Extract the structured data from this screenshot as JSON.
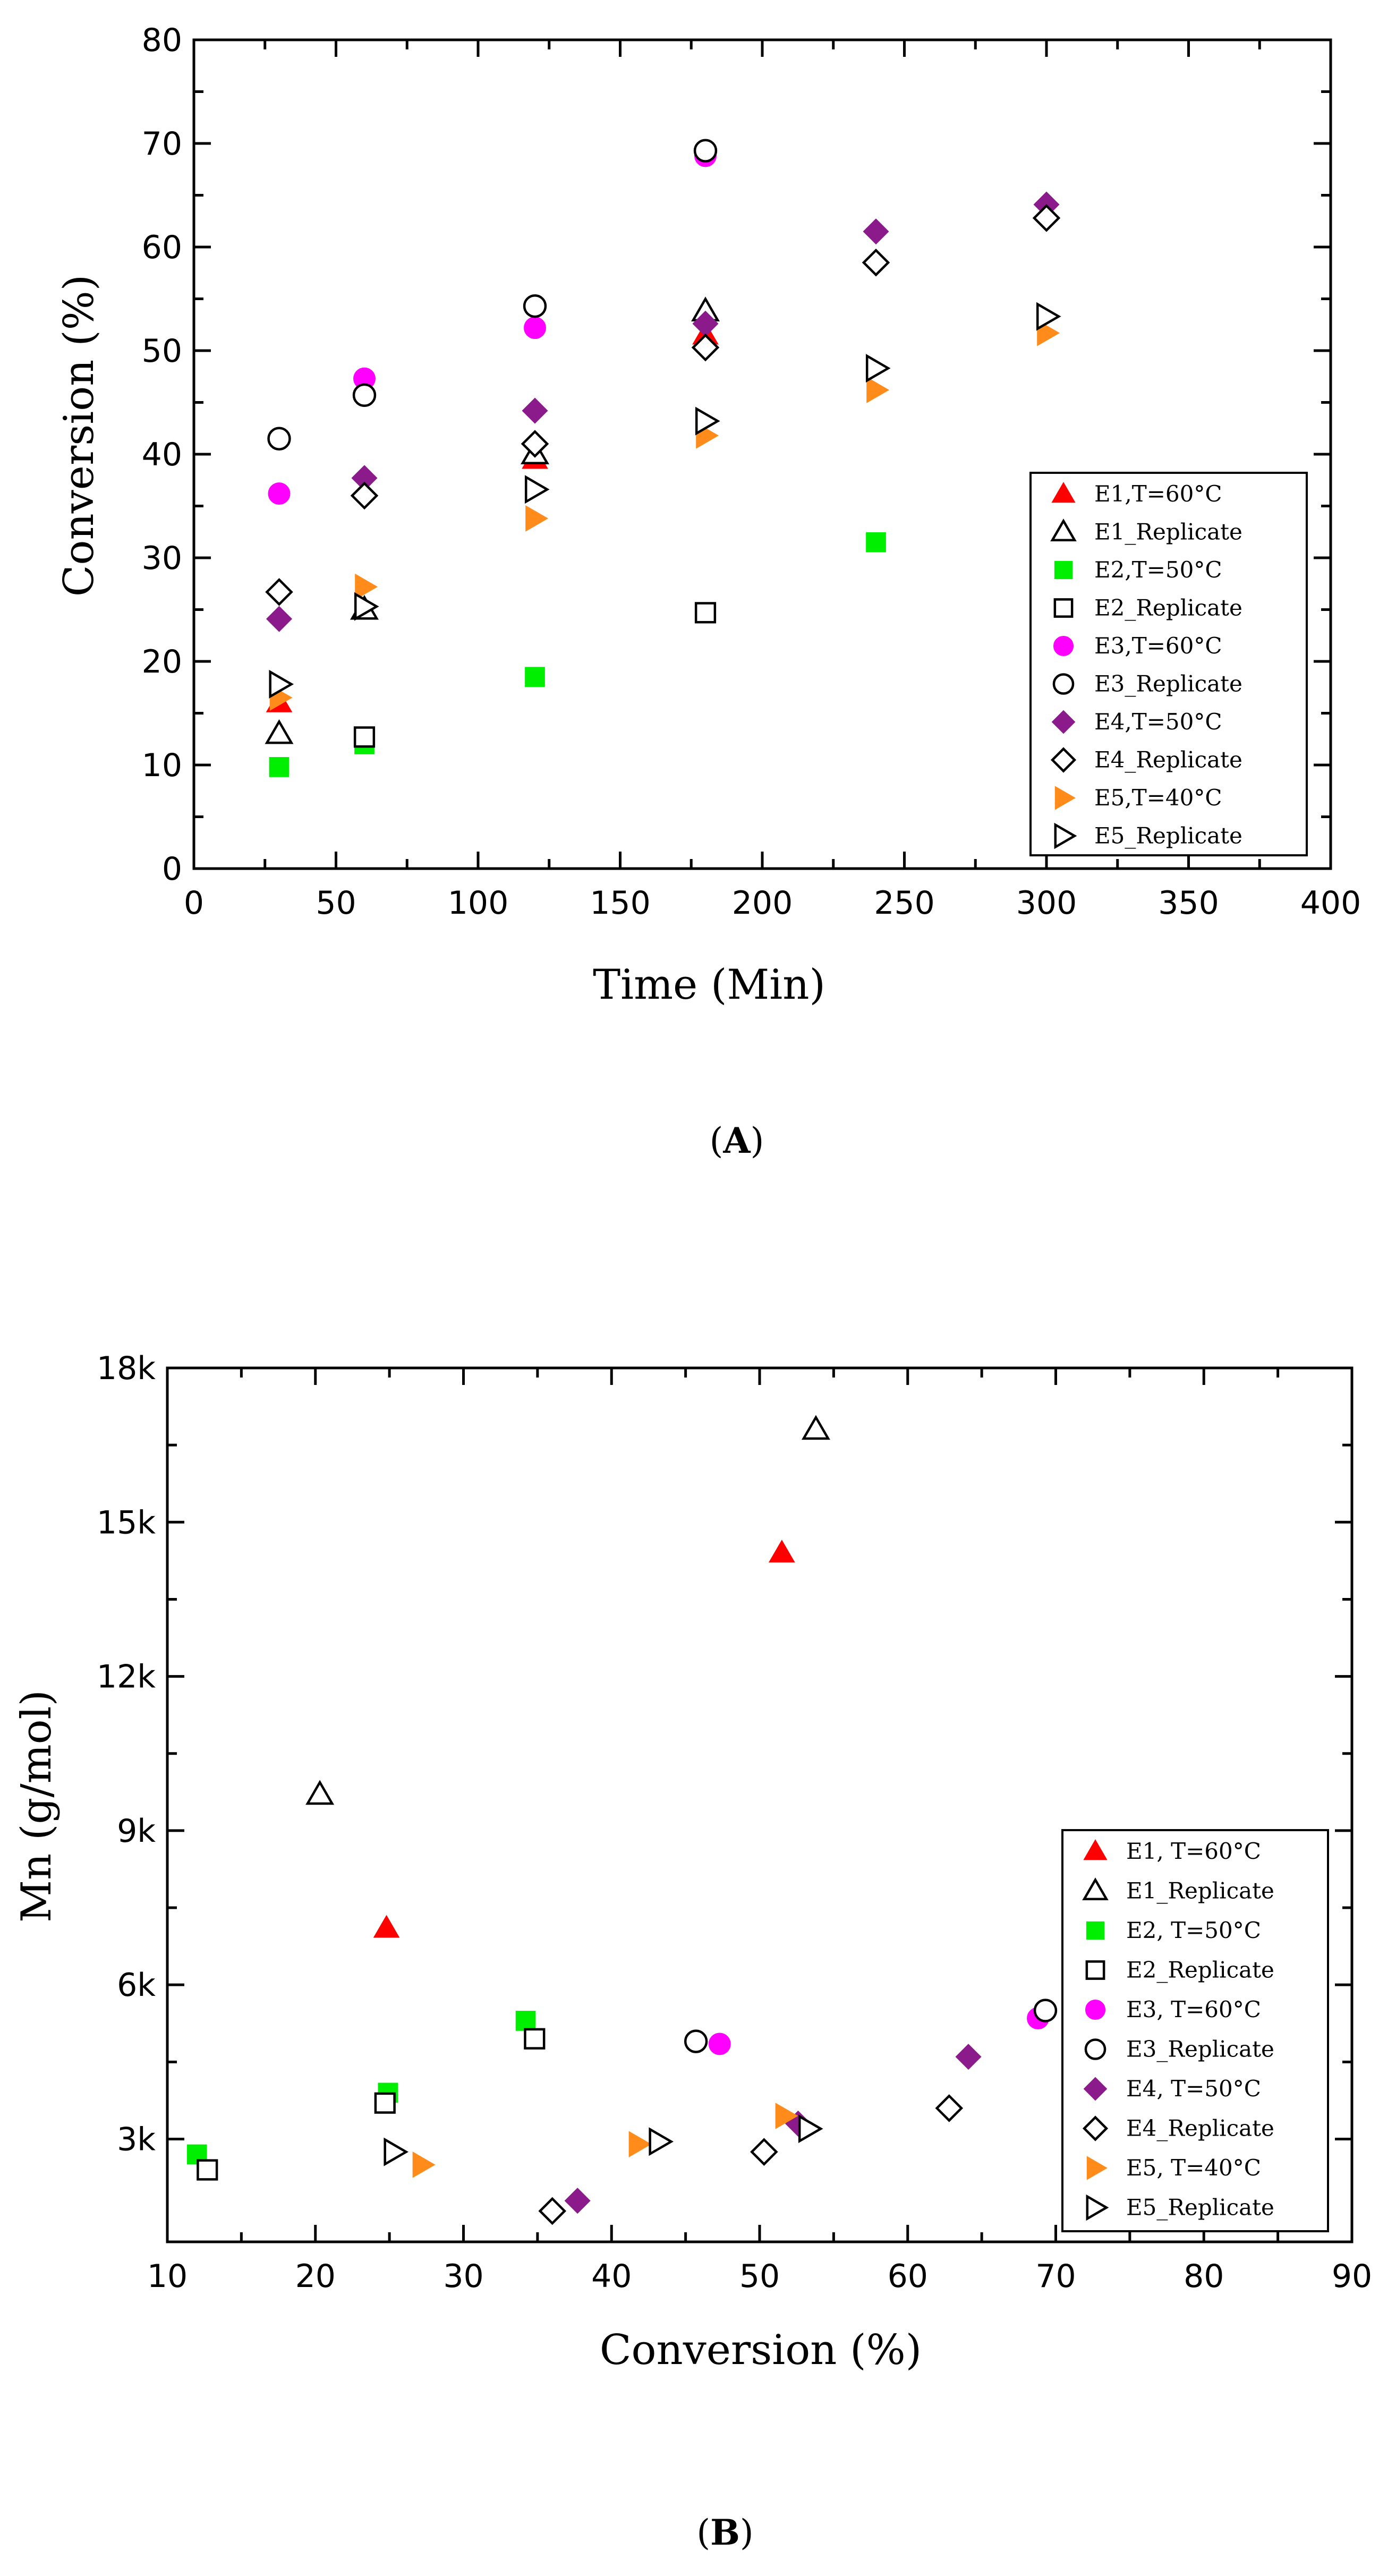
{
  "chart_data": [
    {
      "type": "scatter",
      "panel": "A",
      "xlabel": "Time (Min)",
      "ylabel": "Conversion (%)",
      "xlim": [
        0,
        400
      ],
      "ylim": [
        0,
        80
      ],
      "xticks": [
        0,
        50,
        100,
        150,
        200,
        250,
        300,
        350,
        400
      ],
      "yticks": [
        0,
        10,
        20,
        30,
        40,
        50,
        60,
        70,
        80
      ],
      "legend_position": "bottom-right",
      "series": [
        {
          "name": "E1,T=60°C",
          "marker": "triangle-up",
          "filled": true,
          "color": "#ff0000",
          "x": [
            30,
            60,
            120,
            180
          ],
          "y": [
            16,
            25,
            39.5,
            51.5
          ]
        },
        {
          "name": "E1_Replicate",
          "marker": "triangle-up",
          "filled": false,
          "color": "#000000",
          "x": [
            30,
            60,
            120,
            180
          ],
          "y": [
            13,
            25,
            40,
            53.8
          ]
        },
        {
          "name": "E2,T=50°C",
          "marker": "square",
          "filled": true,
          "color": "#00ee00",
          "x": [
            30,
            60,
            120,
            180,
            240
          ],
          "y": [
            9.8,
            12,
            18.5,
            24.7,
            31.5
          ]
        },
        {
          "name": "E2_Replicate",
          "marker": "square",
          "filled": false,
          "color": "#000000",
          "x": [
            60,
            180
          ],
          "y": [
            12.7,
            24.7
          ]
        },
        {
          "name": "E3,T=60°C",
          "marker": "circle",
          "filled": true,
          "color": "#ff00ff",
          "x": [
            30,
            60,
            120,
            180
          ],
          "y": [
            36.2,
            47.3,
            52.2,
            68.8
          ]
        },
        {
          "name": "E3_Replicate",
          "marker": "circle",
          "filled": false,
          "color": "#000000",
          "x": [
            30,
            60,
            120,
            180
          ],
          "y": [
            41.5,
            45.7,
            54.3,
            69.3
          ]
        },
        {
          "name": "E4,T=50°C",
          "marker": "diamond",
          "filled": true,
          "color": "#8b1a8b",
          "x": [
            30,
            60,
            120,
            180,
            240,
            300
          ],
          "y": [
            24.1,
            37.7,
            44.2,
            52.6,
            61.5,
            64.1
          ]
        },
        {
          "name": "E4_Replicate",
          "marker": "diamond",
          "filled": false,
          "color": "#000000",
          "x": [
            30,
            60,
            120,
            180,
            240,
            300
          ],
          "y": [
            26.7,
            36,
            41,
            50.3,
            58.5,
            62.8
          ]
        },
        {
          "name": "E5,T=40°C",
          "marker": "triangle-right",
          "filled": true,
          "color": "#ff8c1a",
          "x": [
            30,
            60,
            120,
            180,
            240,
            300
          ],
          "y": [
            16.5,
            27.2,
            33.8,
            41.8,
            46.2,
            51.7
          ]
        },
        {
          "name": "E5_Replicate",
          "marker": "triangle-right",
          "filled": false,
          "color": "#000000",
          "x": [
            30,
            60,
            120,
            180,
            240,
            300
          ],
          "y": [
            17.8,
            25.3,
            36.6,
            43.2,
            48.3,
            53.3
          ]
        }
      ]
    },
    {
      "type": "scatter",
      "panel": "B",
      "xlabel": "Conversion (%)",
      "ylabel": "Mn (g/mol)",
      "xlim": [
        10,
        90
      ],
      "ylim": [
        1000,
        18000
      ],
      "xticks": [
        10,
        20,
        30,
        40,
        50,
        60,
        70,
        80,
        90
      ],
      "yticks": [
        3000,
        6000,
        9000,
        12000,
        15000,
        18000
      ],
      "ytick_labels": [
        "3k",
        "6k",
        "9k",
        "12k",
        "15k",
        "18k"
      ],
      "legend_position": "bottom-right",
      "series": [
        {
          "name": "E1, T=60°C",
          "marker": "triangle-up",
          "filled": true,
          "color": "#ff0000",
          "x": [
            24.8,
            51.5
          ],
          "y": [
            7100,
            14400
          ]
        },
        {
          "name": "E1_Replicate",
          "marker": "triangle-up",
          "filled": false,
          "color": "#000000",
          "x": [
            20.3,
            53.8
          ],
          "y": [
            9700,
            16800
          ]
        },
        {
          "name": "E2, T=50°C",
          "marker": "square",
          "filled": true,
          "color": "#00ee00",
          "x": [
            12,
            24.9,
            34.2
          ],
          "y": [
            2700,
            3900,
            5300
          ]
        },
        {
          "name": "E2_Replicate",
          "marker": "square",
          "filled": false,
          "color": "#000000",
          "x": [
            12.7,
            24.7,
            34.8
          ],
          "y": [
            2400,
            3700,
            4950
          ]
        },
        {
          "name": "E3, T=60°C",
          "marker": "circle",
          "filled": true,
          "color": "#ff00ff",
          "x": [
            47.3,
            68.8
          ],
          "y": [
            4850,
            5350
          ]
        },
        {
          "name": "E3_Replicate",
          "marker": "circle",
          "filled": false,
          "color": "#000000",
          "x": [
            45.7,
            69.3
          ],
          "y": [
            4900,
            5500
          ]
        },
        {
          "name": "E4, T=50°C",
          "marker": "diamond",
          "filled": true,
          "color": "#8b1a8b",
          "x": [
            37.7,
            52.6,
            64.1
          ],
          "y": [
            1800,
            3300,
            4600
          ]
        },
        {
          "name": "E4_Replicate",
          "marker": "diamond",
          "filled": false,
          "color": "#000000",
          "x": [
            36,
            50.3,
            62.8
          ],
          "y": [
            1600,
            2750,
            3600
          ]
        },
        {
          "name": "E5, T=40°C",
          "marker": "triangle-right",
          "filled": true,
          "color": "#ff8c1a",
          "x": [
            27.2,
            41.8,
            51.7
          ],
          "y": [
            2500,
            2900,
            3450
          ]
        },
        {
          "name": "E5_Replicate",
          "marker": "triangle-right",
          "filled": false,
          "color": "#000000",
          "x": [
            25.3,
            43.2,
            53.3
          ],
          "y": [
            2750,
            2950,
            3200
          ]
        }
      ]
    }
  ]
}
